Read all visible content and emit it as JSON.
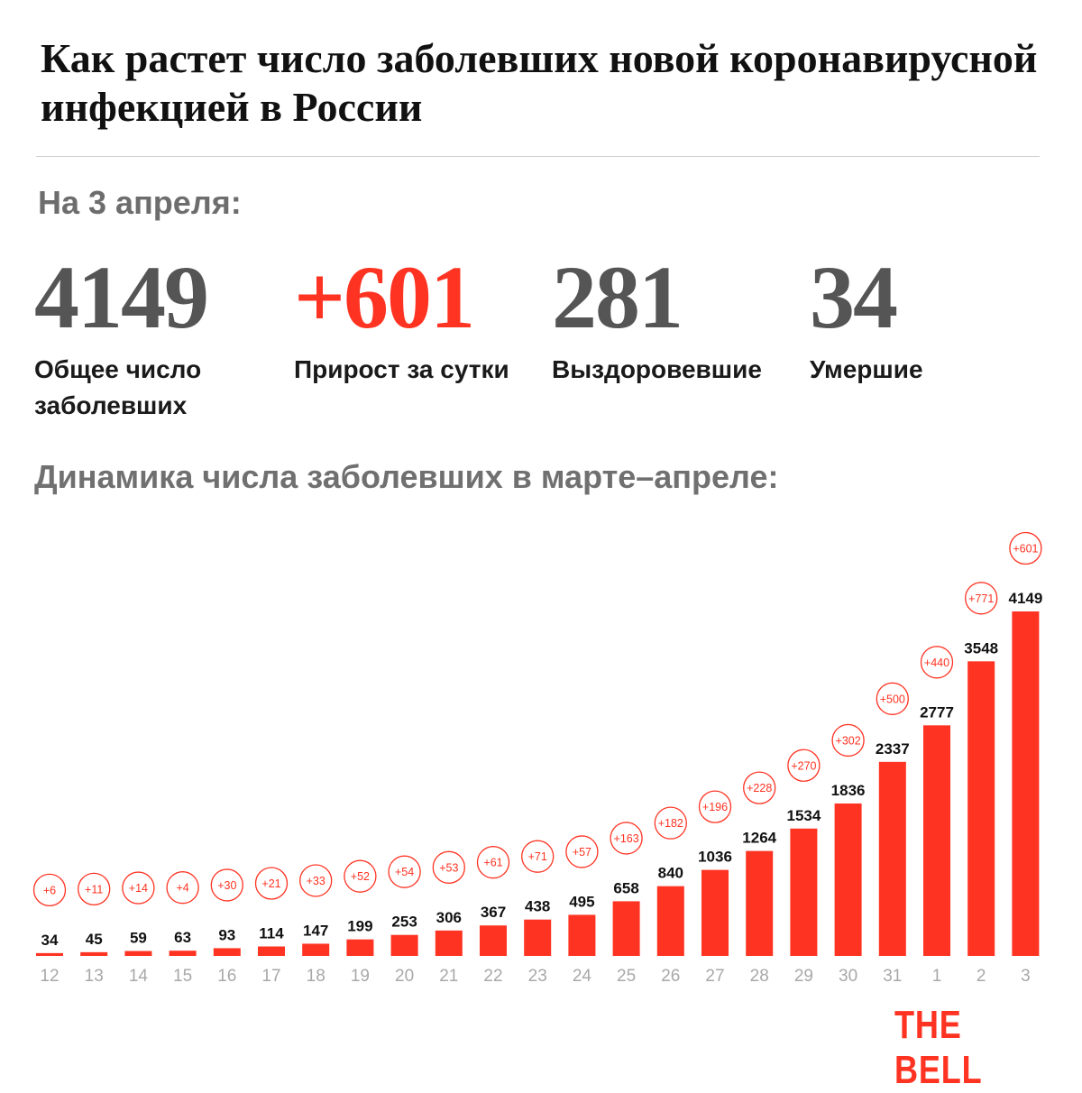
{
  "title": "Как растет число заболевших новой коронавирусной инфекцией в России",
  "date_label": "На 3 апреля:",
  "stats": [
    {
      "value": "4149",
      "label": "Общее число заболевших"
    },
    {
      "value": "+601",
      "label": "Прирост за сутки"
    },
    {
      "value": "281",
      "label": "Выздоровевшие"
    },
    {
      "value": "34",
      "label": "Умершие"
    }
  ],
  "dynamics_title": "Динамика числа заболевших в марте–апреле:",
  "brand": "THE BELL",
  "colors": {
    "accent": "#ff3322",
    "value_gray": "#555555",
    "subtitle_gray": "#707070"
  },
  "chart_data": {
    "type": "bar",
    "categories": [
      "12",
      "13",
      "14",
      "15",
      "16",
      "17",
      "18",
      "19",
      "20",
      "21",
      "22",
      "23",
      "24",
      "25",
      "26",
      "27",
      "28",
      "29",
      "30",
      "31",
      "1",
      "2",
      "3"
    ],
    "values": [
      34,
      45,
      59,
      63,
      93,
      114,
      147,
      199,
      253,
      306,
      367,
      438,
      495,
      658,
      840,
      1036,
      1264,
      1534,
      1836,
      2337,
      2777,
      3548,
      4149
    ],
    "increments": [
      "+6",
      "+11",
      "+14",
      "+4",
      "+30",
      "+21",
      "+33",
      "+52",
      "+54",
      "+53",
      "+61",
      "+71",
      "+57",
      "+163",
      "+182",
      "+196",
      "+228",
      "+270",
      "+302",
      "+500",
      "+440",
      "+771",
      "+601"
    ],
    "ylim": [
      0,
      4149
    ],
    "grid": false,
    "legend": "none"
  }
}
